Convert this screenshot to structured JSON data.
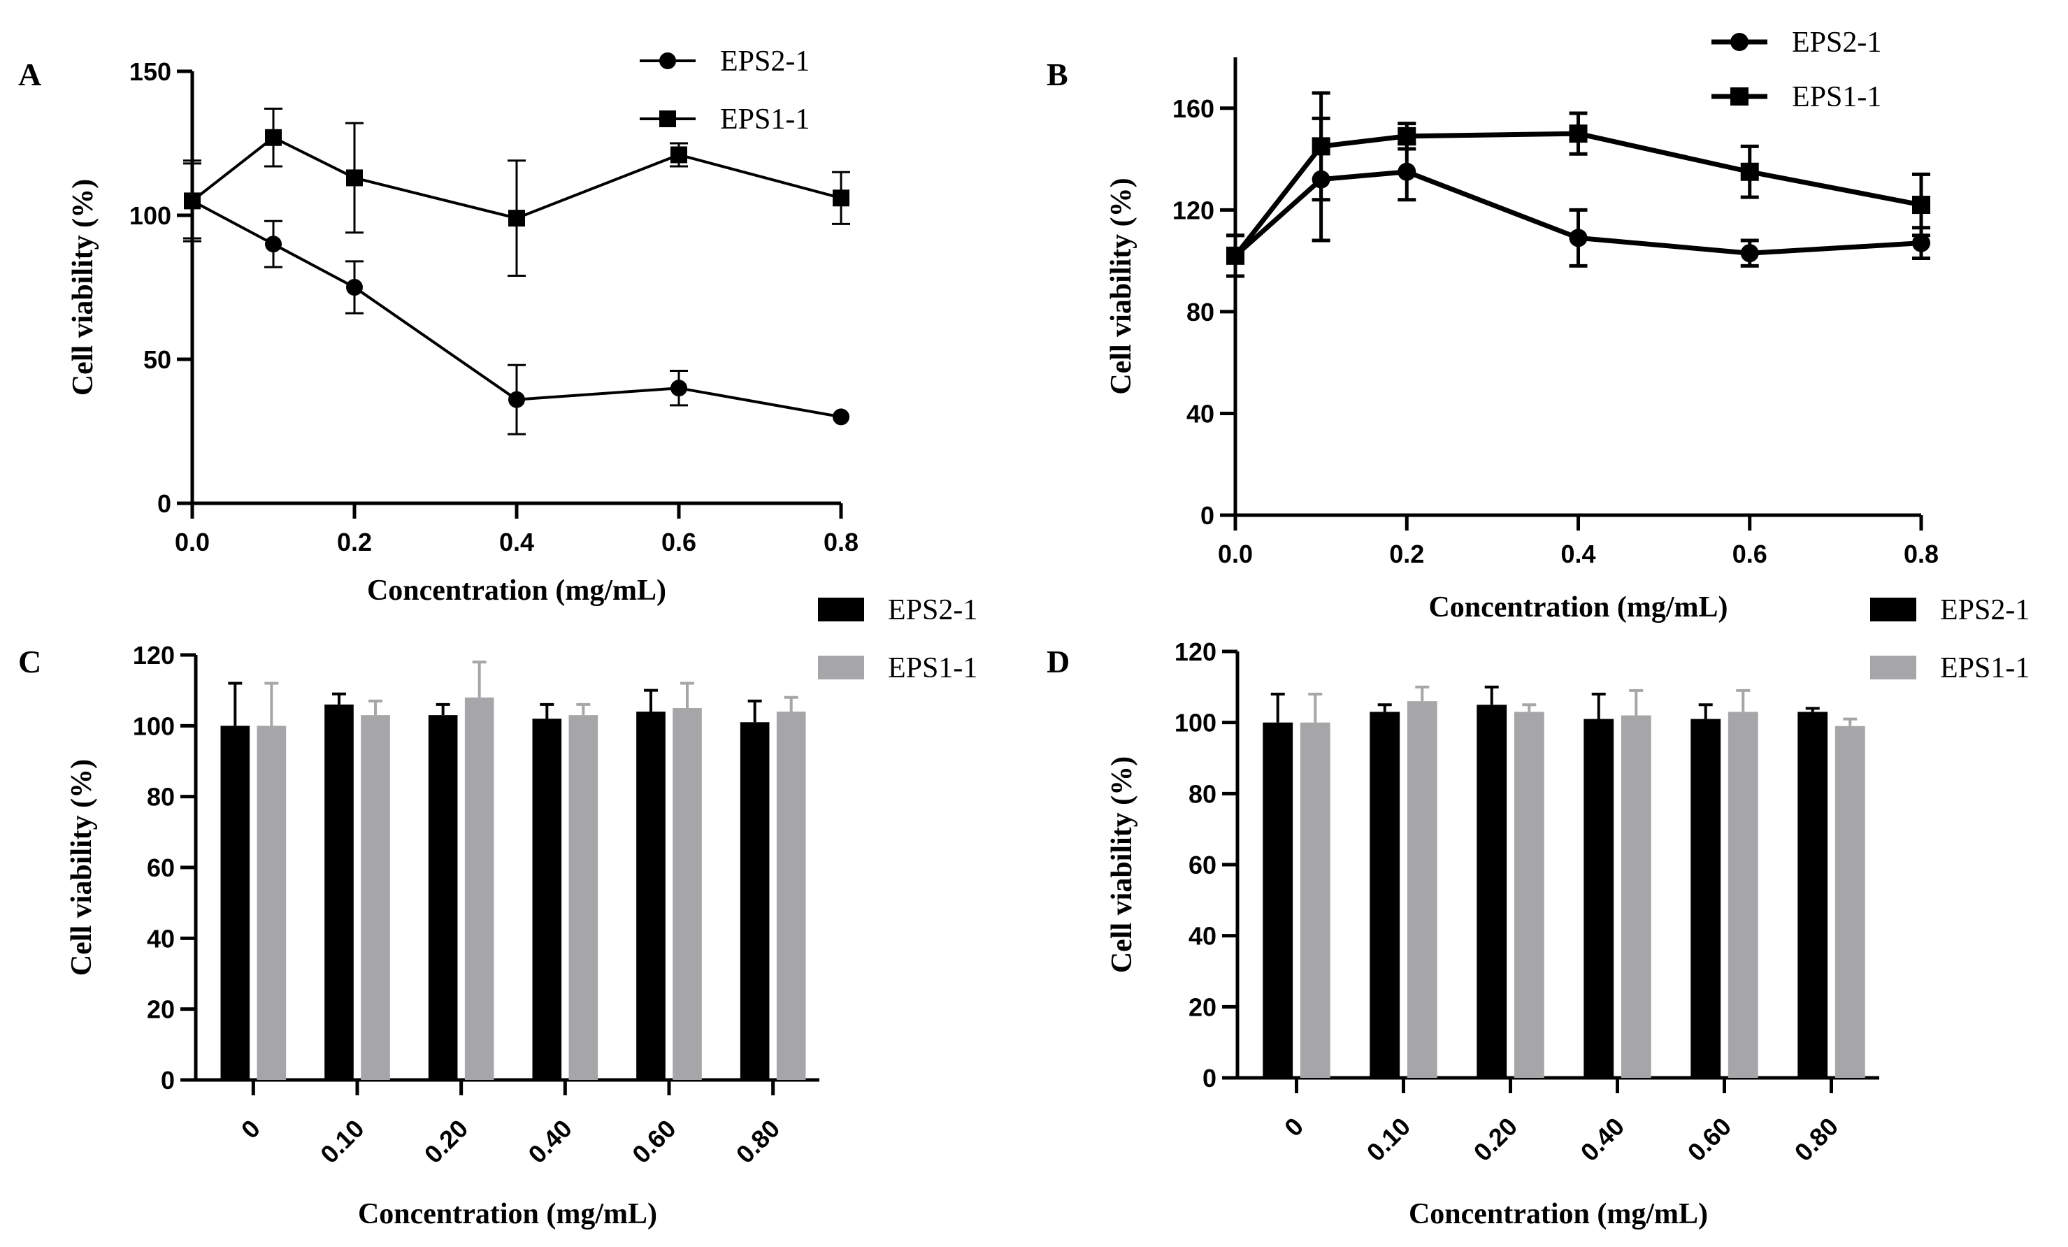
{
  "colors": {
    "EPS2-1": "#000000",
    "EPS1-1": "#a6a6a8"
  },
  "chart_data": [
    {
      "panel": "A",
      "type": "line",
      "xlabel": "Concentration (mg/mL)",
      "ylabel": "Cell viability (%)",
      "xlim": [
        0,
        0.8
      ],
      "ylim": [
        0,
        150
      ],
      "xticks": [
        "0.0",
        "0.2",
        "0.4",
        "0.6",
        "0.8"
      ],
      "yticks": [
        "0",
        "50",
        "100",
        "150"
      ],
      "legend": "top-right",
      "x": [
        0,
        0.1,
        0.2,
        0.4,
        0.6,
        0.8
      ],
      "series": [
        {
          "name": "EPS2-1",
          "marker": "circle",
          "values": [
            105,
            90,
            75,
            36,
            40,
            30
          ],
          "errors": [
            14,
            8,
            9,
            12,
            6,
            0
          ]
        },
        {
          "name": "EPS1-1",
          "marker": "square",
          "values": [
            105,
            127,
            113,
            99,
            121,
            106
          ],
          "errors": [
            13,
            10,
            19,
            20,
            4,
            9
          ]
        }
      ]
    },
    {
      "panel": "B",
      "type": "line",
      "xlabel": "Concentration (mg/mL)",
      "ylabel": "Cell viability (%)",
      "xlim": [
        0,
        0.8
      ],
      "ylim": [
        0,
        180
      ],
      "xticks": [
        "0.0",
        "0.2",
        "0.4",
        "0.6",
        "0.8"
      ],
      "yticks": [
        "0",
        "40",
        "80",
        "120",
        "160"
      ],
      "legend": "top-right",
      "x": [
        0,
        0.1,
        0.2,
        0.4,
        0.6,
        0.8
      ],
      "series": [
        {
          "name": "EPS2-1",
          "marker": "circle",
          "values": [
            102,
            132,
            135,
            109,
            103,
            107
          ],
          "errors": [
            8,
            24,
            11,
            11,
            5,
            6
          ]
        },
        {
          "name": "EPS1-1",
          "marker": "square",
          "values": [
            102,
            145,
            149,
            150,
            135,
            122
          ],
          "errors": [
            8,
            21,
            5,
            8,
            10,
            12
          ]
        }
      ]
    },
    {
      "panel": "C",
      "type": "bar",
      "xlabel": "Concentration (mg/mL)",
      "ylabel": "Cell viability (%)",
      "ylim": [
        0,
        120
      ],
      "yticks": [
        "0",
        "20",
        "40",
        "60",
        "80",
        "100",
        "120"
      ],
      "categories": [
        "0",
        "0.10",
        "0.20",
        "0.40",
        "0.60",
        "0.80"
      ],
      "legend": "top-right",
      "series": [
        {
          "name": "EPS2-1",
          "values": [
            100,
            106,
            103,
            102,
            104,
            101
          ],
          "errors": [
            12,
            3,
            3,
            4,
            6,
            6
          ]
        },
        {
          "name": "EPS1-1",
          "values": [
            100,
            103,
            108,
            103,
            105,
            104
          ],
          "errors": [
            12,
            4,
            10,
            3,
            7,
            4
          ]
        }
      ]
    },
    {
      "panel": "D",
      "type": "bar",
      "xlabel": "Concentration (mg/mL)",
      "ylabel": "Cell viability (%)",
      "ylim": [
        0,
        120
      ],
      "yticks": [
        "0",
        "20",
        "40",
        "60",
        "80",
        "100",
        "120"
      ],
      "categories": [
        "0",
        "0.10",
        "0.20",
        "0.40",
        "0.60",
        "0.80"
      ],
      "legend": "top-right",
      "series": [
        {
          "name": "EPS2-1",
          "values": [
            100,
            103,
            105,
            101,
            101,
            103
          ],
          "errors": [
            8,
            2,
            5,
            7,
            4,
            1
          ]
        },
        {
          "name": "EPS1-1",
          "values": [
            100,
            106,
            103,
            102,
            103,
            99
          ],
          "errors": [
            8,
            4,
            2,
            7,
            6,
            2
          ]
        }
      ]
    }
  ]
}
